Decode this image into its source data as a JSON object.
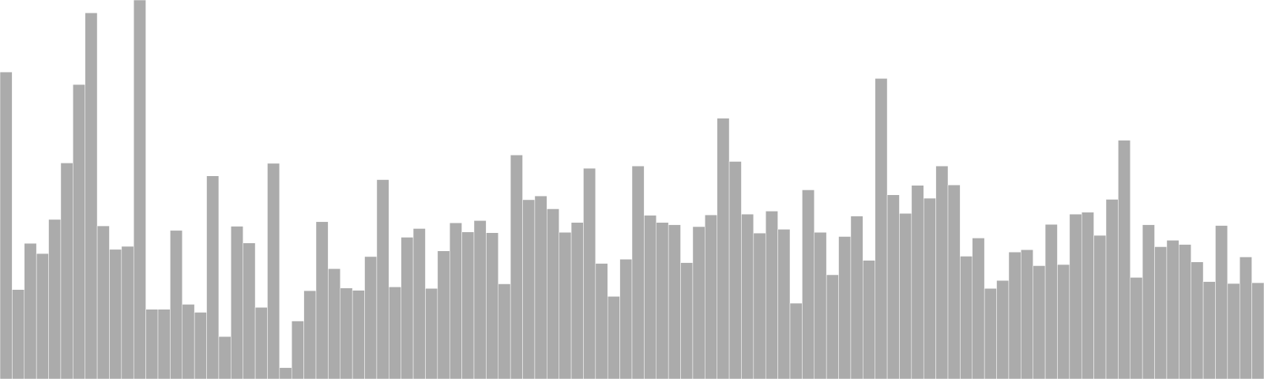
{
  "chart_data": {
    "type": "bar",
    "title": "",
    "xlabel": "",
    "ylabel": "",
    "grid": false,
    "legend": "none",
    "ylim": [
      0,
      100
    ],
    "bar_color": "#ababab",
    "bar_edge_color": "#ffffff",
    "values": [
      81.0,
      23.6,
      35.8,
      33.1,
      42.1,
      57.0,
      77.7,
      96.6,
      40.4,
      34.2,
      35.0,
      100.0,
      18.4,
      18.4,
      39.2,
      19.7,
      17.6,
      53.6,
      11.2,
      40.3,
      35.9,
      18.9,
      56.9,
      3.0,
      15.3,
      23.3,
      41.5,
      29.1,
      24.0,
      23.4,
      32.3,
      52.6,
      24.3,
      37.4,
      39.7,
      23.9,
      33.8,
      41.2,
      38.8,
      41.8,
      38.6,
      25.1,
      59.1,
      47.3,
      48.3,
      44.9,
      38.7,
      41.3,
      55.6,
      30.5,
      21.8,
      31.6,
      56.2,
      43.2,
      41.3,
      40.7,
      30.7,
      40.2,
      43.3,
      68.8,
      57.4,
      43.5,
      38.5,
      44.3,
      39.5,
      20.0,
      49.9,
      38.7,
      27.5,
      37.6,
      43.0,
      31.3,
      79.3,
      48.6,
      43.7,
      51.1,
      47.7,
      56.2,
      51.2,
      32.4,
      37.2,
      23.9,
      26.0,
      33.5,
      34.1,
      29.9,
      40.8,
      30.2,
      43.5,
      44.0,
      37.9,
      47.4,
      63.0,
      26.8,
      40.7,
      34.9,
      36.6,
      35.5,
      30.9,
      25.7,
      40.5,
      25.2,
      32.2,
      25.4
    ]
  }
}
